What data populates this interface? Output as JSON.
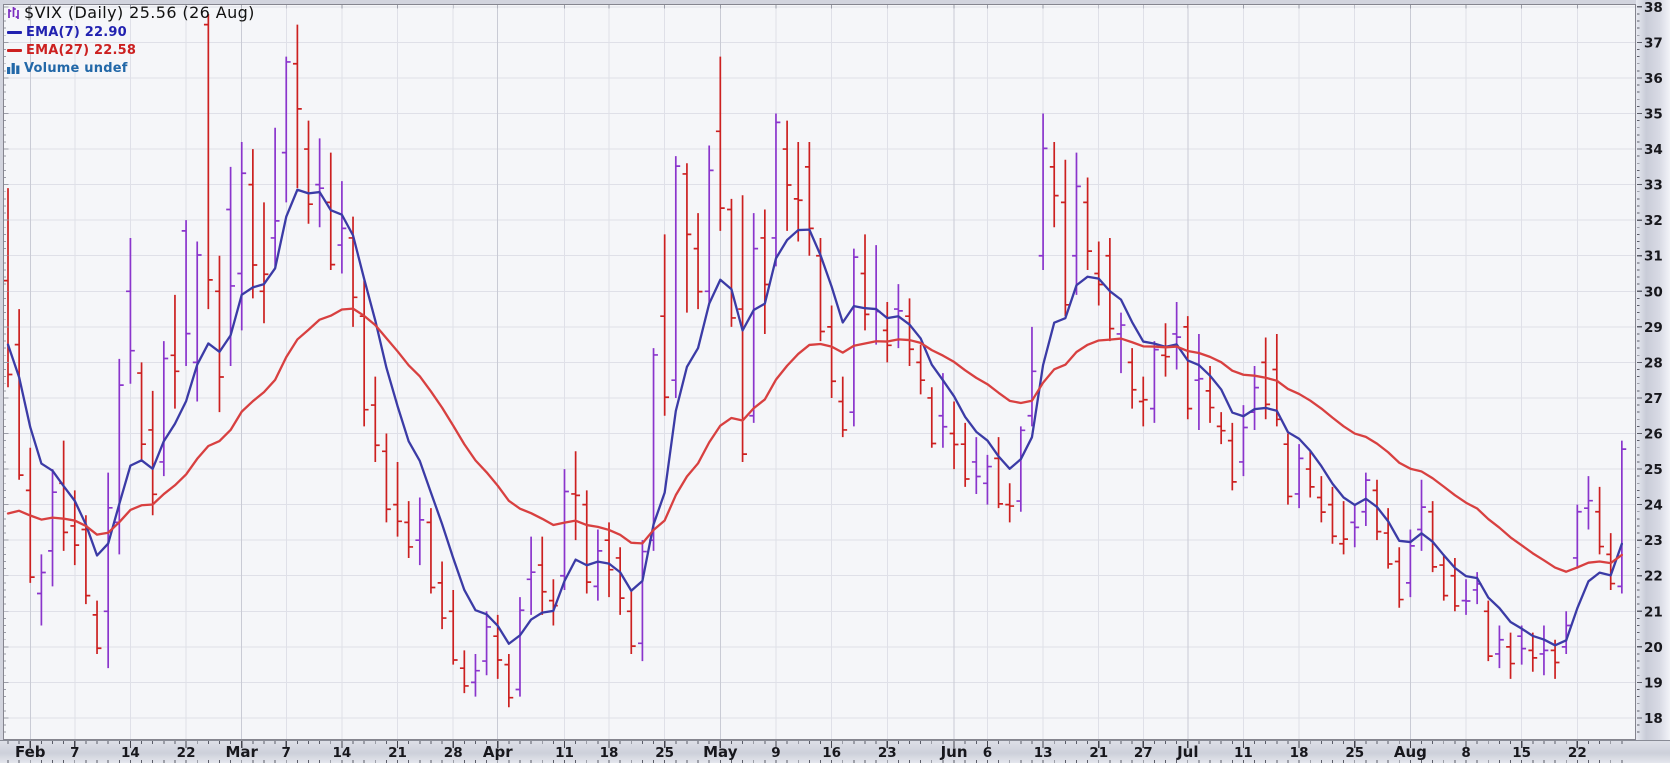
{
  "header": {
    "title": "$VIX (Daily) 25.56 (26 Aug)",
    "title_icon": "candlestick-icon",
    "legend": [
      {
        "id": "ema7",
        "label": "EMA(7) 22.90",
        "swatch": "dash"
      },
      {
        "id": "ema27",
        "label": "EMA(27) 22.58",
        "swatch": "dash"
      },
      {
        "id": "volume",
        "label": "Volume undef",
        "swatch": "volume-bars-icon"
      }
    ]
  },
  "colors": {
    "title_text": "#111111",
    "ema7_text": "#2121b0",
    "ema27_text": "#cc2020",
    "volume_text": "#2268a8",
    "up_bar": "#8a35cc",
    "down_bar": "#cc2020",
    "ema7_line": "#3b3ba6",
    "ema27_line": "#d84040",
    "plot_bg": "#f5f6f9",
    "gridline": "#dfe0e8",
    "gridline_month": "#c9cbd5",
    "border": "#85858f",
    "axis_text": "#17171c",
    "tick": "#5b5d68",
    "chrome_bg": "#d2d4de",
    "title_icon": "#7b2cbf",
    "volume_icon": "#2268a8"
  },
  "chart_data": {
    "type": "bar",
    "subtype": "ohlc-daily-with-ema-overlays",
    "symbol": "$VIX",
    "timeframe": "Daily",
    "last_close": 25.56,
    "last_date": "26 Aug",
    "ylim": [
      17.38,
      38.08
    ],
    "grid": true,
    "legend_position": "top-left",
    "y_axis_side": "right",
    "y_ticks": [
      18,
      19,
      20,
      21,
      22,
      23,
      24,
      25,
      26,
      27,
      28,
      29,
      30,
      31,
      32,
      33,
      34,
      35,
      36,
      37,
      38
    ],
    "x_ticks": [
      {
        "label": "Feb",
        "index": 2,
        "month": true
      },
      {
        "label": "7",
        "index": 6
      },
      {
        "label": "14",
        "index": 11
      },
      {
        "label": "22",
        "index": 16
      },
      {
        "label": "Mar",
        "index": 21,
        "month": true
      },
      {
        "label": "7",
        "index": 25
      },
      {
        "label": "14",
        "index": 30
      },
      {
        "label": "21",
        "index": 35
      },
      {
        "label": "28",
        "index": 40
      },
      {
        "label": "Apr",
        "index": 44,
        "month": true
      },
      {
        "label": "11",
        "index": 50
      },
      {
        "label": "18",
        "index": 54
      },
      {
        "label": "25",
        "index": 59
      },
      {
        "label": "May",
        "index": 64,
        "month": true
      },
      {
        "label": "9",
        "index": 69
      },
      {
        "label": "16",
        "index": 74
      },
      {
        "label": "23",
        "index": 79
      },
      {
        "label": "Jun",
        "index": 85,
        "month": true
      },
      {
        "label": "6",
        "index": 88
      },
      {
        "label": "13",
        "index": 93
      },
      {
        "label": "21",
        "index": 98
      },
      {
        "label": "27",
        "index": 102
      },
      {
        "label": "Jul",
        "index": 106,
        "month": true
      },
      {
        "label": "11",
        "index": 111
      },
      {
        "label": "18",
        "index": 116
      },
      {
        "label": "25",
        "index": 121
      },
      {
        "label": "Aug",
        "index": 126,
        "month": true
      },
      {
        "label": "8",
        "index": 131
      },
      {
        "label": "15",
        "index": 136
      },
      {
        "label": "22",
        "index": 141
      }
    ],
    "overlays": [
      {
        "name": "EMA(7)",
        "period": 7,
        "start": 28.5,
        "current": 22.9,
        "color_key": "ema7_line"
      },
      {
        "name": "EMA(27)",
        "period": 27,
        "start": 23.75,
        "current": 22.58,
        "color_key": "ema27_line"
      }
    ],
    "bars_format": [
      "date",
      "open",
      "high",
      "low",
      "close"
    ],
    "bars": [
      [
        "Jan 28",
        30.3,
        32.9,
        27.3,
        27.66
      ],
      [
        "Jan 31",
        28.5,
        29.5,
        24.7,
        24.83
      ],
      [
        "Feb 1",
        24.4,
        25.6,
        21.8,
        21.96
      ],
      [
        "Feb 2",
        21.5,
        22.6,
        20.6,
        22.09
      ],
      [
        "Feb 3",
        22.7,
        25.0,
        21.7,
        24.35
      ],
      [
        "Feb 4",
        24.6,
        25.8,
        22.7,
        23.22
      ],
      [
        "Feb 7",
        23.4,
        24.4,
        22.3,
        22.86
      ],
      [
        "Feb 8",
        23.3,
        23.7,
        21.2,
        21.44
      ],
      [
        "Feb 9",
        20.9,
        21.3,
        19.8,
        19.96
      ],
      [
        "Feb 10",
        21.0,
        24.9,
        19.4,
        23.91
      ],
      [
        "Feb 11",
        23.5,
        28.1,
        22.6,
        27.36
      ],
      [
        "Feb 14",
        30.0,
        31.5,
        27.4,
        28.33
      ],
      [
        "Feb 15",
        27.7,
        28.0,
        25.2,
        25.7
      ],
      [
        "Feb 16",
        26.1,
        27.2,
        23.7,
        24.29
      ],
      [
        "Feb 17",
        25.2,
        28.6,
        24.8,
        28.11
      ],
      [
        "Feb 18",
        28.2,
        29.9,
        26.7,
        27.75
      ],
      [
        "Feb 22",
        31.7,
        32.0,
        27.9,
        28.81
      ],
      [
        "Feb 23",
        28.0,
        31.4,
        26.9,
        31.02
      ],
      [
        "Feb 24",
        37.5,
        37.8,
        29.5,
        30.32
      ],
      [
        "Feb 25",
        30.0,
        31.0,
        26.6,
        27.59
      ],
      [
        "Feb 28",
        32.3,
        33.5,
        27.9,
        30.15
      ],
      [
        "Mar 1",
        30.5,
        34.2,
        28.9,
        33.32
      ],
      [
        "Mar 2",
        33.0,
        34.0,
        29.8,
        30.74
      ],
      [
        "Mar 3",
        30.0,
        32.5,
        29.1,
        30.48
      ],
      [
        "Mar 4",
        31.5,
        34.6,
        30.7,
        31.98
      ],
      [
        "Mar 7",
        33.9,
        36.6,
        32.5,
        36.45
      ],
      [
        "Mar 8",
        36.4,
        37.5,
        32.9,
        35.13
      ],
      [
        "Mar 9",
        34.0,
        34.8,
        31.9,
        32.45
      ],
      [
        "Mar 10",
        33.0,
        34.3,
        31.8,
        32.9
      ],
      [
        "Mar 11",
        32.5,
        33.9,
        30.6,
        30.75
      ],
      [
        "Mar 14",
        31.3,
        33.1,
        30.5,
        31.77
      ],
      [
        "Mar 15",
        31.5,
        32.1,
        29.0,
        29.83
      ],
      [
        "Mar 16",
        29.3,
        30.3,
        26.2,
        26.67
      ],
      [
        "Mar 17",
        26.8,
        27.6,
        25.2,
        25.67
      ],
      [
        "Mar 18",
        25.5,
        26.0,
        23.5,
        23.87
      ],
      [
        "Mar 21",
        24.0,
        25.2,
        23.1,
        23.53
      ],
      [
        "Mar 22",
        23.5,
        24.1,
        22.5,
        22.81
      ],
      [
        "Mar 23",
        23.0,
        24.2,
        22.3,
        23.57
      ],
      [
        "Mar 24",
        23.5,
        23.9,
        21.5,
        21.67
      ],
      [
        "Mar 25",
        21.8,
        22.4,
        20.5,
        20.81
      ],
      [
        "Mar 28",
        21.0,
        21.6,
        19.5,
        19.63
      ],
      [
        "Mar 29",
        19.4,
        19.9,
        18.7,
        18.9
      ],
      [
        "Mar 30",
        19.0,
        19.8,
        18.6,
        19.33
      ],
      [
        "Mar 31",
        19.6,
        21.0,
        19.2,
        20.56
      ],
      [
        "Apr 1",
        20.3,
        20.9,
        19.1,
        19.63
      ],
      [
        "Apr 4",
        19.5,
        19.8,
        18.3,
        18.57
      ],
      [
        "Apr 5",
        18.8,
        21.4,
        18.6,
        21.03
      ],
      [
        "Apr 6",
        21.9,
        23.1,
        20.9,
        22.1
      ],
      [
        "Apr 7",
        22.3,
        23.1,
        20.9,
        21.55
      ],
      [
        "Apr 8",
        21.3,
        21.9,
        20.6,
        21.16
      ],
      [
        "Apr 11",
        22.0,
        25.0,
        21.6,
        24.37
      ],
      [
        "Apr 12",
        24.3,
        25.5,
        23.0,
        24.26
      ],
      [
        "Apr 13",
        24.0,
        24.4,
        21.5,
        21.82
      ],
      [
        "Apr 14",
        21.7,
        23.3,
        21.3,
        22.7
      ],
      [
        "Apr 18",
        23.0,
        23.5,
        21.4,
        22.17
      ],
      [
        "Apr 19",
        22.5,
        22.8,
        20.9,
        21.37
      ],
      [
        "Apr 20",
        21.0,
        21.6,
        19.8,
        20.02
      ],
      [
        "Apr 21",
        20.1,
        23.0,
        19.6,
        22.68
      ],
      [
        "Apr 22",
        23.0,
        28.4,
        22.7,
        28.21
      ],
      [
        "Apr 25",
        29.3,
        31.6,
        26.5,
        27.02
      ],
      [
        "Apr 26",
        27.5,
        33.8,
        27.0,
        33.52
      ],
      [
        "Apr 27",
        33.3,
        33.6,
        29.4,
        31.6
      ],
      [
        "Apr 28",
        31.2,
        32.2,
        29.5,
        29.99
      ],
      [
        "Apr 29",
        30.0,
        34.1,
        29.6,
        33.4
      ],
      [
        "May 2",
        34.5,
        36.6,
        31.7,
        32.34
      ],
      [
        "May 3",
        32.3,
        32.6,
        29.0,
        29.25
      ],
      [
        "May 4",
        29.5,
        32.7,
        25.2,
        25.42
      ],
      [
        "May 5",
        26.5,
        32.2,
        26.3,
        31.2
      ],
      [
        "May 6",
        31.5,
        32.3,
        28.8,
        30.19
      ],
      [
        "May 9",
        31.5,
        35.0,
        30.7,
        34.75
      ],
      [
        "May 10",
        34.0,
        34.8,
        31.7,
        32.99
      ],
      [
        "May 11",
        32.6,
        34.2,
        31.4,
        32.56
      ],
      [
        "May 12",
        33.5,
        34.2,
        31.0,
        31.77
      ],
      [
        "May 13",
        31.0,
        31.5,
        28.6,
        28.87
      ],
      [
        "May 16",
        29.0,
        29.6,
        27.0,
        27.47
      ],
      [
        "May 17",
        26.9,
        27.6,
        25.9,
        26.1
      ],
      [
        "May 18",
        26.6,
        31.2,
        26.2,
        30.96
      ],
      [
        "May 19",
        30.5,
        31.6,
        28.9,
        29.35
      ],
      [
        "May 20",
        29.5,
        31.3,
        28.5,
        29.43
      ],
      [
        "May 23",
        28.9,
        29.7,
        28.0,
        28.48
      ],
      [
        "May 24",
        29.5,
        30.2,
        28.4,
        29.45
      ],
      [
        "May 25",
        29.3,
        29.8,
        27.9,
        28.37
      ],
      [
        "May 26",
        28.0,
        28.5,
        27.1,
        27.5
      ],
      [
        "May 27",
        27.0,
        27.3,
        25.6,
        25.72
      ],
      [
        "May 31",
        26.5,
        27.7,
        25.6,
        26.19
      ],
      [
        "Jun 1",
        26.0,
        26.9,
        25.0,
        25.69
      ],
      [
        "Jun 2",
        25.7,
        26.3,
        24.5,
        24.72
      ],
      [
        "Jun 3",
        25.2,
        25.9,
        24.3,
        24.79
      ],
      [
        "Jun 6",
        24.6,
        25.4,
        24.0,
        25.07
      ],
      [
        "Jun 7",
        25.3,
        25.9,
        23.9,
        24.02
      ],
      [
        "Jun 8",
        24.0,
        24.6,
        23.5,
        23.96
      ],
      [
        "Jun 9",
        24.1,
        26.2,
        23.8,
        26.09
      ],
      [
        "Jun 10",
        26.5,
        29.0,
        26.2,
        27.75
      ],
      [
        "Jun 13",
        31.0,
        35.0,
        30.6,
        34.02
      ],
      [
        "Jun 14",
        33.5,
        34.2,
        31.8,
        32.69
      ],
      [
        "Jun 15",
        32.5,
        33.7,
        29.3,
        29.62
      ],
      [
        "Jun 16",
        31.0,
        33.9,
        29.9,
        32.95
      ],
      [
        "Jun 17",
        32.5,
        33.2,
        30.6,
        31.13
      ],
      [
        "Jun 21",
        30.5,
        31.4,
        29.6,
        30.19
      ],
      [
        "Jun 22",
        31.0,
        31.5,
        28.6,
        28.95
      ],
      [
        "Jun 23",
        28.8,
        29.4,
        27.7,
        29.05
      ],
      [
        "Jun 24",
        28.0,
        28.4,
        26.7,
        27.23
      ],
      [
        "Jun 27",
        26.9,
        27.6,
        26.2,
        26.95
      ],
      [
        "Jun 28",
        26.7,
        28.6,
        26.3,
        28.36
      ],
      [
        "Jun 29",
        28.2,
        29.1,
        27.6,
        28.16
      ],
      [
        "Jun 30",
        28.8,
        29.7,
        27.8,
        28.71
      ],
      [
        "Jul 1",
        29.0,
        29.3,
        26.4,
        26.7
      ],
      [
        "Jul 5",
        27.5,
        28.8,
        26.1,
        27.54
      ],
      [
        "Jul 6",
        27.2,
        27.9,
        26.3,
        26.73
      ],
      [
        "Jul 7",
        26.2,
        26.6,
        25.7,
        26.08
      ],
      [
        "Jul 8",
        25.8,
        26.3,
        24.4,
        24.64
      ],
      [
        "Jul 11",
        25.2,
        26.8,
        24.8,
        26.17
      ],
      [
        "Jul 12",
        26.6,
        27.9,
        26.1,
        27.29
      ],
      [
        "Jul 13",
        28.0,
        28.7,
        26.4,
        26.82
      ],
      [
        "Jul 14",
        27.8,
        28.8,
        26.2,
        26.4
      ],
      [
        "Jul 15",
        25.7,
        26.0,
        24.0,
        24.23
      ],
      [
        "Jul 18",
        24.3,
        25.7,
        23.9,
        25.3
      ],
      [
        "Jul 19",
        25.0,
        25.5,
        24.2,
        24.5
      ],
      [
        "Jul 20",
        24.2,
        24.8,
        23.5,
        23.79
      ],
      [
        "Jul 21",
        24.0,
        24.5,
        22.9,
        23.11
      ],
      [
        "Jul 22",
        22.9,
        24.1,
        22.6,
        23.03
      ],
      [
        "Jul 25",
        23.5,
        24.0,
        22.8,
        23.36
      ],
      [
        "Jul 26",
        23.8,
        24.9,
        23.4,
        24.69
      ],
      [
        "Jul 27",
        24.4,
        24.7,
        23.0,
        23.24
      ],
      [
        "Jul 28",
        23.2,
        23.9,
        22.2,
        22.33
      ],
      [
        "Jul 29",
        22.4,
        22.8,
        21.1,
        21.33
      ],
      [
        "Aug 1",
        21.8,
        23.3,
        21.4,
        22.84
      ],
      [
        "Aug 2",
        23.3,
        24.7,
        22.7,
        23.93
      ],
      [
        "Aug 3",
        23.8,
        24.1,
        22.1,
        22.25
      ],
      [
        "Aug 4",
        22.3,
        22.6,
        21.3,
        21.44
      ],
      [
        "Aug 5",
        22.0,
        22.5,
        21.0,
        21.15
      ],
      [
        "Aug 8",
        21.3,
        21.9,
        20.9,
        21.29
      ],
      [
        "Aug 9",
        21.6,
        22.1,
        21.2,
        21.77
      ],
      [
        "Aug 10",
        21.0,
        21.3,
        19.6,
        19.74
      ],
      [
        "Aug 11",
        19.8,
        20.6,
        19.4,
        20.2
      ],
      [
        "Aug 12",
        20.0,
        20.4,
        19.1,
        19.53
      ],
      [
        "Aug 15",
        20.3,
        20.6,
        19.5,
        19.95
      ],
      [
        "Aug 16",
        19.9,
        20.4,
        19.3,
        19.69
      ],
      [
        "Aug 17",
        19.8,
        20.6,
        19.2,
        19.9
      ],
      [
        "Aug 18",
        19.9,
        20.2,
        19.1,
        19.56
      ],
      [
        "Aug 19",
        20.0,
        21.0,
        19.8,
        20.6
      ],
      [
        "Aug 22",
        22.5,
        24.0,
        22.2,
        23.8
      ],
      [
        "Aug 23",
        23.9,
        24.8,
        23.3,
        24.11
      ],
      [
        "Aug 24",
        23.8,
        24.5,
        22.6,
        22.82
      ],
      [
        "Aug 25",
        22.6,
        23.2,
        21.6,
        21.78
      ],
      [
        "Aug 26",
        21.7,
        25.8,
        21.5,
        25.56
      ]
    ]
  }
}
